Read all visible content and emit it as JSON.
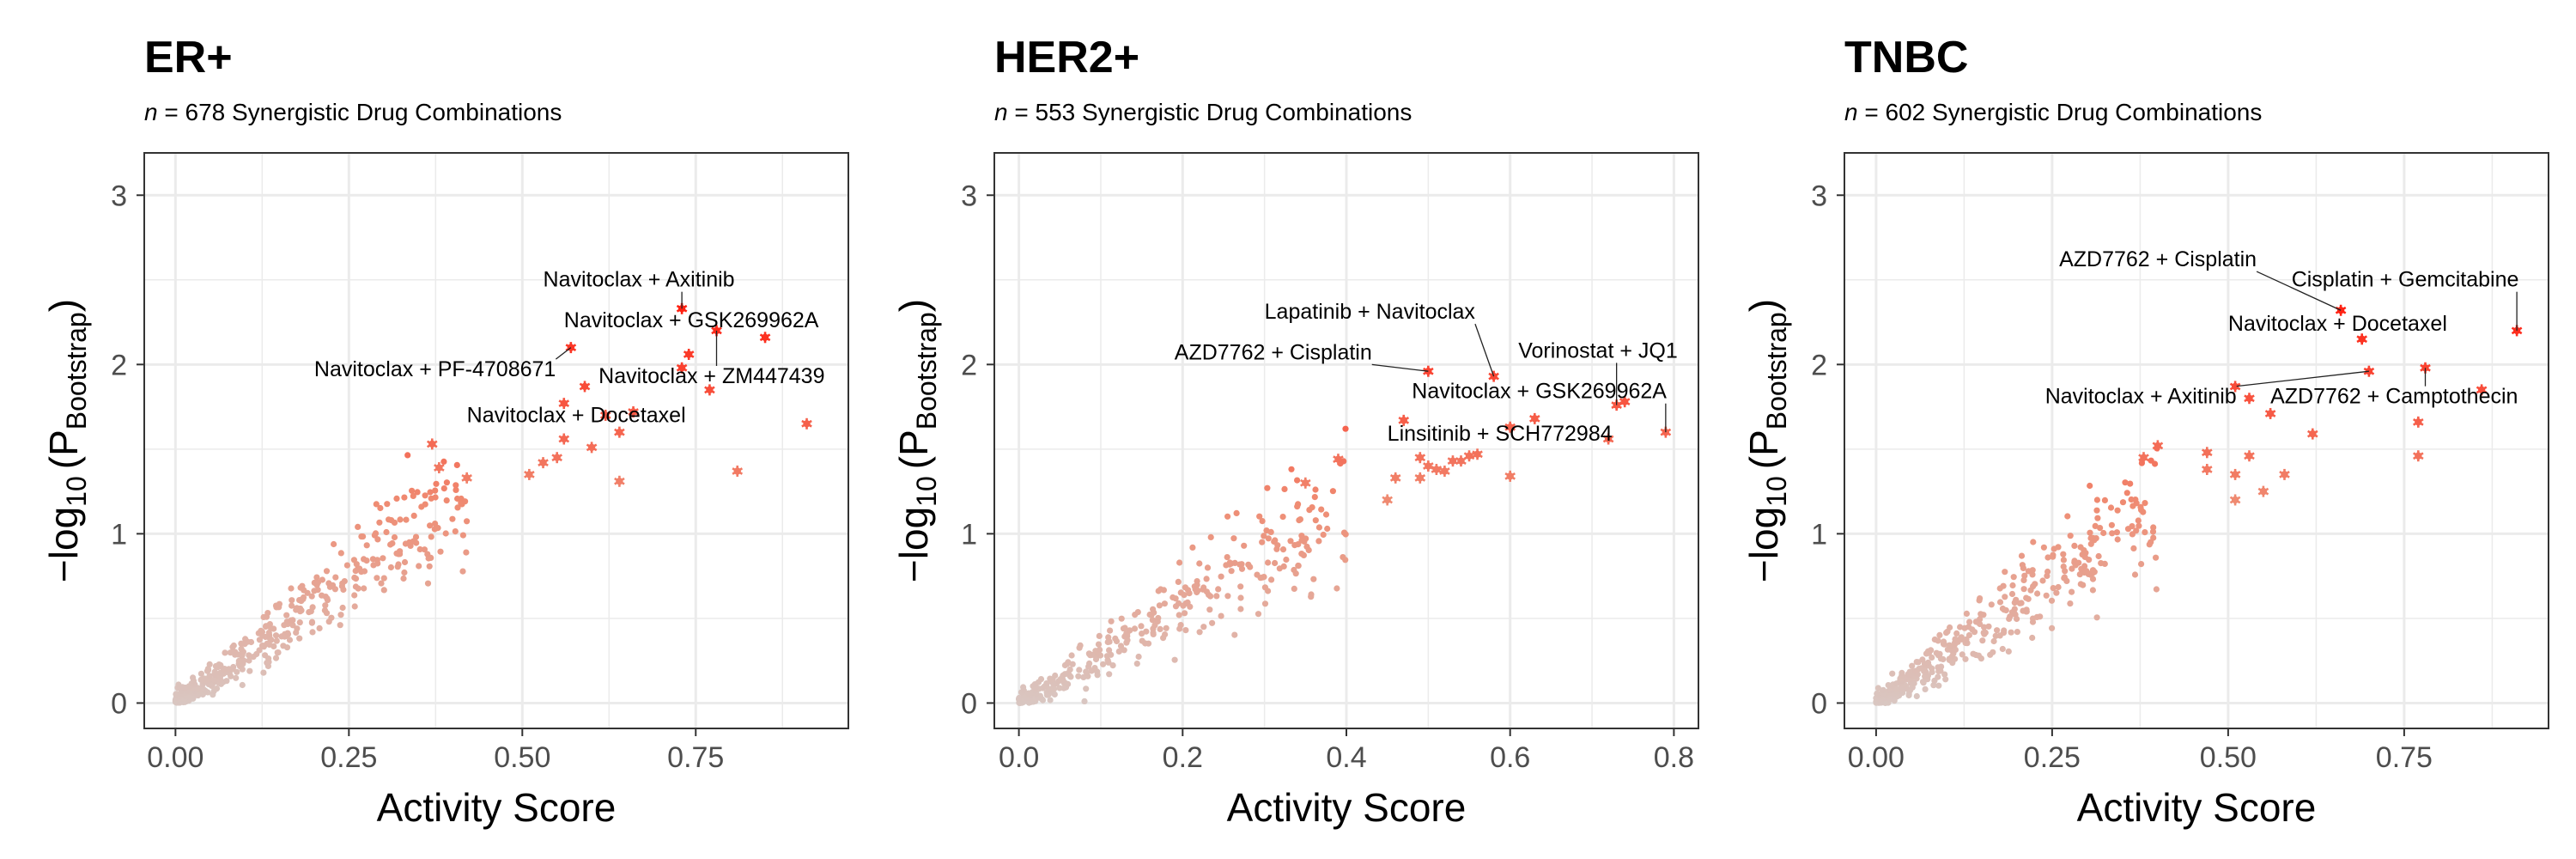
{
  "chart_data": [
    {
      "type": "scatter",
      "title": "ER+",
      "subtitle_n": "678",
      "subtitle_rest": " Synergistic Drug Combinations",
      "xlabel": "Activity Score",
      "xlim": [
        -0.045,
        0.97
      ],
      "ylim": [
        -0.15,
        3.25
      ],
      "xticks": [
        0,
        0.25,
        0.5,
        0.75
      ],
      "xtick_labels": [
        "0.00",
        "0.25",
        "0.50",
        "0.75"
      ],
      "yticks": [
        0,
        1,
        2,
        3
      ],
      "ytick_labels": [
        "0",
        "1",
        "2",
        "3"
      ],
      "seed": 11,
      "n_bulk": 430,
      "bulk_xmax": 0.42,
      "highlight": [
        [
          0.73,
          2.33
        ],
        [
          0.85,
          2.16
        ],
        [
          0.78,
          2.2
        ],
        [
          0.57,
          2.1
        ],
        [
          0.74,
          2.06
        ],
        [
          0.59,
          1.87
        ],
        [
          0.77,
          1.85
        ],
        [
          0.56,
          1.77
        ],
        [
          0.62,
          1.7
        ],
        [
          0.66,
          1.72
        ],
        [
          0.73,
          1.98
        ],
        [
          0.91,
          1.65
        ],
        [
          0.37,
          1.53
        ],
        [
          0.6,
          1.51
        ],
        [
          0.56,
          1.56
        ],
        [
          0.64,
          1.6
        ],
        [
          0.38,
          1.39
        ],
        [
          0.53,
          1.42
        ],
        [
          0.81,
          1.37
        ],
        [
          0.51,
          1.35
        ],
        [
          0.42,
          1.33
        ],
        [
          0.64,
          1.31
        ],
        [
          0.55,
          1.45
        ]
      ],
      "labels": [
        {
          "text": "Navitoclax + Axitinib",
          "x": 0.53,
          "y": 2.46,
          "px": 0.73,
          "py": 2.33
        },
        {
          "text": "Navitoclax + GSK269962A",
          "x": 0.56,
          "y": 2.22,
          "px": 0.85,
          "py": 2.16
        },
        {
          "text": "Navitoclax + PF-4708671",
          "x": 0.2,
          "y": 1.93,
          "px": 0.57,
          "py": 2.1
        },
        {
          "text": "Navitoclax + ZM447439",
          "x": 0.61,
          "y": 1.89,
          "px": 0.78,
          "py": 2.2
        },
        {
          "text": "Navitoclax + Docetaxel",
          "x": 0.42,
          "y": 1.66,
          "px": 0.66,
          "py": 1.72
        }
      ]
    },
    {
      "type": "scatter",
      "title": "HER2+",
      "subtitle_n": "553",
      "subtitle_rest": " Synergistic Drug Combinations",
      "xlabel": "Activity Score",
      "xlim": [
        -0.03,
        0.83
      ],
      "ylim": [
        -0.15,
        3.25
      ],
      "xticks": [
        0,
        0.2,
        0.4,
        0.6,
        0.8
      ],
      "xtick_labels": [
        "0.0",
        "0.2",
        "0.4",
        "0.6",
        "0.8"
      ],
      "yticks": [
        0,
        1,
        2,
        3
      ],
      "ytick_labels": [
        "0",
        "1",
        "2",
        "3"
      ],
      "seed": 23,
      "n_bulk": 350,
      "bulk_xmax": 0.4,
      "highlight": [
        [
          0.58,
          1.93
        ],
        [
          0.5,
          1.96
        ],
        [
          0.73,
          1.76
        ],
        [
          0.79,
          1.6
        ],
        [
          0.72,
          1.56
        ],
        [
          0.6,
          1.63
        ],
        [
          0.63,
          1.68
        ],
        [
          0.47,
          1.67
        ],
        [
          0.49,
          1.45
        ],
        [
          0.55,
          1.46
        ],
        [
          0.56,
          1.47
        ],
        [
          0.53,
          1.43
        ],
        [
          0.5,
          1.4
        ],
        [
          0.46,
          1.33
        ],
        [
          0.49,
          1.33
        ],
        [
          0.52,
          1.37
        ],
        [
          0.54,
          1.43
        ],
        [
          0.6,
          1.34
        ],
        [
          0.39,
          1.44
        ],
        [
          0.35,
          1.3
        ],
        [
          0.51,
          1.38
        ],
        [
          0.45,
          1.2
        ],
        [
          0.74,
          1.78
        ]
      ],
      "labels": [
        {
          "text": "Lapatinib + Navitoclax",
          "x": 0.3,
          "y": 2.27,
          "px": 0.58,
          "py": 1.93
        },
        {
          "text": "AZD7762 + Cisplatin",
          "x": 0.19,
          "y": 2.03,
          "px": 0.5,
          "py": 1.96
        },
        {
          "text": "Vorinostat + JQ1",
          "x": 0.61,
          "y": 2.04,
          "px": 0.73,
          "py": 1.76
        },
        {
          "text": "Navitoclax + GSK269962A",
          "x": 0.48,
          "y": 1.8,
          "px": 0.79,
          "py": 1.6
        },
        {
          "text": "Linsitinib + SCH772984",
          "x": 0.45,
          "y": 1.55,
          "px": 0.63,
          "py": 1.68
        }
      ]
    },
    {
      "type": "scatter",
      "title": "TNBC",
      "subtitle_n": "602",
      "subtitle_rest": " Synergistic Drug Combinations",
      "xlabel": "Activity Score",
      "xlim": [
        -0.045,
        0.955
      ],
      "ylim": [
        -0.15,
        3.25
      ],
      "xticks": [
        0,
        0.25,
        0.5,
        0.75
      ],
      "xtick_labels": [
        "0.00",
        "0.25",
        "0.50",
        "0.75"
      ],
      "yticks": [
        0,
        1,
        2,
        3
      ],
      "ytick_labels": [
        "0",
        "1",
        "2",
        "3"
      ],
      "seed": 37,
      "n_bulk": 400,
      "bulk_xmax": 0.4,
      "highlight": [
        [
          0.66,
          2.32
        ],
        [
          0.91,
          2.2
        ],
        [
          0.69,
          2.15
        ],
        [
          0.7,
          1.96
        ],
        [
          0.78,
          1.98
        ],
        [
          0.77,
          1.66
        ],
        [
          0.77,
          1.46
        ],
        [
          0.62,
          1.59
        ],
        [
          0.56,
          1.71
        ],
        [
          0.51,
          1.87
        ],
        [
          0.53,
          1.46
        ],
        [
          0.47,
          1.48
        ],
        [
          0.47,
          1.38
        ],
        [
          0.51,
          1.35
        ],
        [
          0.58,
          1.35
        ],
        [
          0.4,
          1.52
        ],
        [
          0.38,
          1.45
        ],
        [
          0.55,
          1.25
        ],
        [
          0.51,
          1.2
        ],
        [
          0.53,
          1.8
        ],
        [
          0.86,
          1.85
        ]
      ],
      "labels": [
        {
          "text": "AZD7762 + Cisplatin",
          "x": 0.26,
          "y": 2.58,
          "px": 0.66,
          "py": 2.32
        },
        {
          "text": "Cisplatin + Gemcitabine",
          "x": 0.59,
          "y": 2.46,
          "px": 0.91,
          "py": 2.2
        },
        {
          "text": "Navitoclax + Docetaxel",
          "x": 0.5,
          "y": 2.2,
          "px": 0.69,
          "py": 2.15
        },
        {
          "text": "Navitoclax + Axitinib",
          "x": 0.24,
          "y": 1.77,
          "px": 0.7,
          "py": 1.96
        },
        {
          "text": "AZD7762 + Camptothecin",
          "x": 0.56,
          "y": 1.77,
          "px": 0.78,
          "py": 1.98
        }
      ]
    }
  ],
  "colors": {
    "low": "#d9c7c2",
    "mid": "#ef8c73",
    "high": "#ff1f10",
    "grid": "#ebebeb",
    "frame": "#333333"
  }
}
